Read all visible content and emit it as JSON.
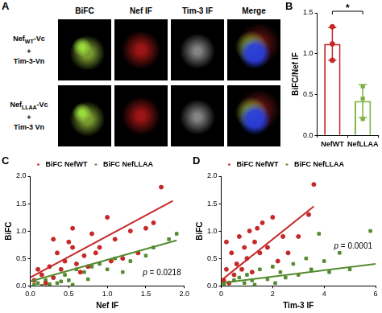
{
  "panel_a": {
    "panel": "A",
    "columns": [
      "BiFC",
      "Nef IF",
      "Tim-3 IF",
      "Merge"
    ],
    "rows": [
      [
        [
          {
            "t": "Nef"
          },
          {
            "t": "WT",
            "sub": true
          },
          {
            "t": "-Vc"
          }
        ],
        [
          {
            "t": "+"
          }
        ],
        [
          {
            "t": "Tim-3-Vn"
          }
        ]
      ],
      [
        [
          {
            "t": "Nef"
          },
          {
            "t": "LLAA",
            "sub": true
          },
          {
            "t": "-Vc"
          }
        ],
        [
          {
            "t": "+"
          }
        ],
        [
          {
            "t": "Tim-3 Vn"
          }
        ]
      ]
    ]
  },
  "chart_data": [
    {
      "panel": "B",
      "type": "bar",
      "categories": [
        "NefWT",
        "NefLLAA"
      ],
      "values": [
        1.12,
        0.42
      ],
      "errors": [
        0.2,
        0.2
      ],
      "points": [
        [
          1.33,
          1.12,
          0.92
        ],
        [
          0.6,
          0.45,
          0.2
        ]
      ],
      "colors": [
        "#c62828",
        "#7cb342"
      ],
      "marker": [
        "circle",
        "square"
      ],
      "y_label": "BiFC/Nef IF",
      "ylim": [
        0,
        1.5
      ],
      "yticks": [
        {
          "value": 0,
          "label": "0.0"
        },
        {
          "value": 0.5,
          "label": "0.5"
        },
        {
          "value": 1,
          "label": "1.0"
        },
        {
          "value": 1.5,
          "label": "1.5"
        }
      ],
      "grid": false,
      "annotations": [
        {
          "text": "*",
          "from": 0,
          "to": 1
        }
      ]
    },
    {
      "panel": "C",
      "type": "scatter",
      "x_label": "Nef IF",
      "y_label": "BiFC",
      "xlim": [
        0,
        2
      ],
      "xticks": [
        {
          "value": 0,
          "label": "0.0"
        },
        {
          "value": 0.5,
          "label": "0.5"
        },
        {
          "value": 1,
          "label": "1.0"
        },
        {
          "value": 1.5,
          "label": "1.5"
        },
        {
          "value": 2,
          "label": "2.0"
        }
      ],
      "ylim": [
        0,
        2
      ],
      "yticks": [
        {
          "value": 0,
          "label": "0.0"
        },
        {
          "value": 0.5,
          "label": "0.5"
        },
        {
          "value": 1,
          "label": "1.0"
        },
        {
          "value": 1.5,
          "label": "1.5"
        },
        {
          "value": 2,
          "label": "2.0"
        }
      ],
      "grid": false,
      "legend": "top",
      "series": [
        {
          "name": "BiFC NefWT",
          "color": "#c62828",
          "marker": "circle",
          "x": [
            0.05,
            0.1,
            0.15,
            0.2,
            0.25,
            0.3,
            0.35,
            0.4,
            0.45,
            0.5,
            0.55,
            0.6,
            0.65,
            0.7,
            0.75,
            0.8,
            0.85,
            0.9,
            1.0,
            1.05,
            1.1,
            1.2,
            1.3,
            1.4,
            1.5,
            1.6,
            1.7,
            0.3,
            0.55
          ],
          "y": [
            0.1,
            0.3,
            0.2,
            0.05,
            0.35,
            0.15,
            0.6,
            0.3,
            0.45,
            0.8,
            0.7,
            0.4,
            0.25,
            0.55,
            0.35,
            0.95,
            0.6,
            0.7,
            1.25,
            0.45,
            0.85,
            0.5,
            1.0,
            0.6,
            1.05,
            1.15,
            1.8,
            0.85,
            1.05
          ],
          "fit": {
            "x": [
              0,
              1.85
            ],
            "y": [
              0.15,
              1.55
            ]
          }
        },
        {
          "name": "BiFC NefLLAA",
          "color": "#558b2f",
          "marker": "square",
          "x": [
            0.05,
            0.1,
            0.2,
            0.25,
            0.3,
            0.4,
            0.45,
            0.5,
            0.6,
            0.7,
            0.8,
            0.9,
            1.0,
            1.1,
            1.2,
            1.3,
            1.4,
            1.5,
            1.6,
            1.8,
            1.9,
            0.15,
            0.35,
            0.55,
            0.75
          ],
          "y": [
            0.02,
            0.05,
            0.1,
            0.03,
            0.15,
            0.08,
            0.2,
            0.1,
            0.3,
            0.25,
            0.35,
            0.4,
            0.3,
            0.5,
            0.25,
            0.45,
            0.6,
            0.55,
            0.7,
            0.85,
            0.95,
            0.0,
            0.05,
            0.02,
            0.12
          ],
          "fit": {
            "x": [
              0,
              1.9
            ],
            "y": [
              0.08,
              0.83
            ]
          }
        }
      ],
      "annotations": [
        {
          "text": "p = 0.0218"
        }
      ]
    },
    {
      "panel": "D",
      "type": "scatter",
      "x_label": "Tim-3 IF",
      "y_label": "BiFC",
      "xlim": [
        0,
        6
      ],
      "xticks": [
        0,
        2,
        4,
        6
      ],
      "ylim": [
        0,
        2
      ],
      "yticks": [
        {
          "value": 0,
          "label": "0.0"
        },
        {
          "value": 0.5,
          "label": "0.5"
        },
        {
          "value": 1,
          "label": "1.0"
        },
        {
          "value": 1.5,
          "label": "1.5"
        },
        {
          "value": 2,
          "label": "2.0"
        }
      ],
      "grid": false,
      "legend": "top",
      "series": [
        {
          "name": "BiFC NefWT",
          "color": "#c62828",
          "marker": "circle",
          "x": [
            0.1,
            0.2,
            0.3,
            0.4,
            0.5,
            0.6,
            0.7,
            0.8,
            0.9,
            1.0,
            1.1,
            1.2,
            1.3,
            1.5,
            1.6,
            1.8,
            2.0,
            2.2,
            2.4,
            2.6,
            3.0,
            3.4,
            3.6,
            0.2,
            1.4
          ],
          "y": [
            0.1,
            0.3,
            0.05,
            0.6,
            0.2,
            0.4,
            0.9,
            0.3,
            0.7,
            0.5,
            1.0,
            0.25,
            0.8,
            0.6,
            1.15,
            0.7,
            1.25,
            0.45,
            0.9,
            0.6,
            0.9,
            1.3,
            1.85,
            0.8,
            1.05
          ],
          "fit": {
            "x": [
              0,
              3.6
            ],
            "y": [
              0.1,
              1.45
            ]
          }
        },
        {
          "name": "BiFC NefLLAA",
          "color": "#558b2f",
          "marker": "square",
          "x": [
            0.1,
            0.3,
            0.5,
            0.7,
            0.9,
            1.0,
            1.2,
            1.5,
            1.8,
            2.0,
            2.3,
            2.5,
            2.8,
            3.0,
            3.3,
            3.5,
            3.8,
            4.0,
            4.2,
            4.6,
            5.0,
            5.8,
            1.3,
            2.1
          ],
          "y": [
            0.02,
            0.05,
            0.1,
            0.15,
            0.05,
            0.2,
            0.1,
            0.3,
            0.12,
            0.35,
            0.25,
            0.15,
            0.4,
            0.2,
            0.5,
            0.3,
            0.95,
            0.45,
            0.25,
            0.6,
            0.3,
            1.0,
            0.02,
            0.05
          ],
          "fit": {
            "x": [
              0,
              6
            ],
            "y": [
              0.05,
              0.4
            ]
          }
        }
      ],
      "annotations": [
        {
          "text": "p = 0.0001"
        }
      ]
    }
  ]
}
